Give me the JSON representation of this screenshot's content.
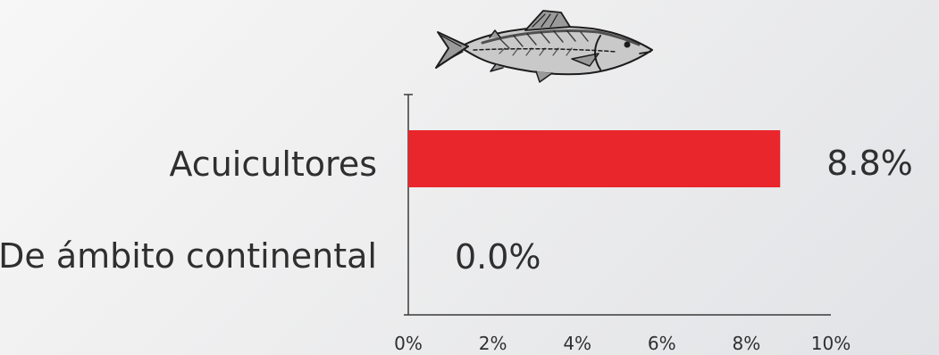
{
  "chart_data": {
    "type": "bar",
    "orientation": "horizontal",
    "categories": [
      "Acuicultores",
      "De ámbito continental"
    ],
    "values": [
      8.8,
      0.0
    ],
    "data_labels": [
      "8.8%",
      "0.0%"
    ],
    "xlim": [
      0,
      10
    ],
    "x_ticks": [
      0,
      2,
      4,
      6,
      8,
      10
    ],
    "x_tick_labels": [
      "0%",
      "2%",
      "4%",
      "6%",
      "8%",
      "10%"
    ],
    "grid": false,
    "legend": "none",
    "bar_color": "#e8262b"
  },
  "decoration": {
    "icon": "fish-icon"
  }
}
